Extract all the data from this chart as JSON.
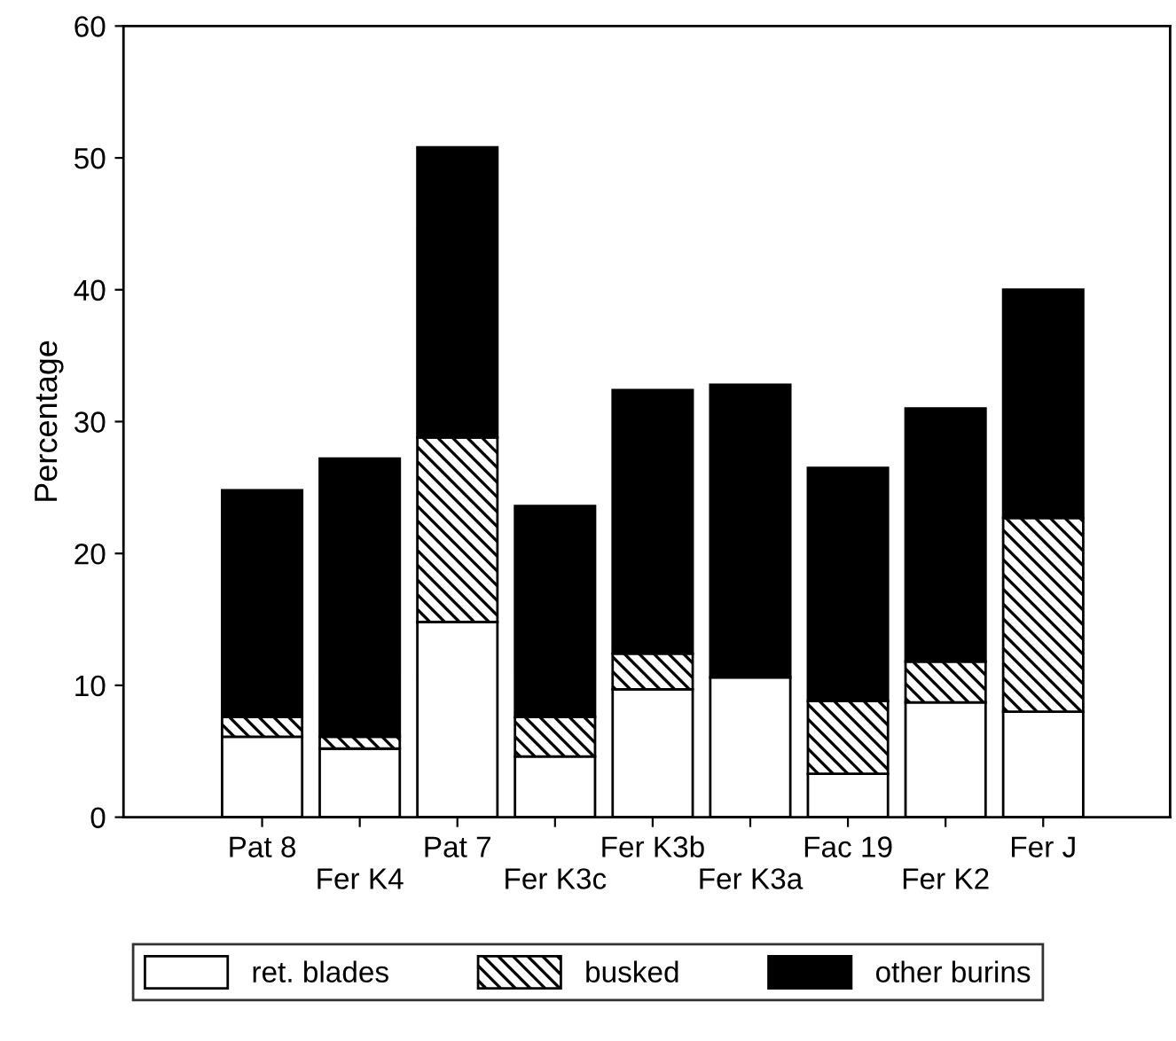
{
  "chart_data": {
    "type": "bar",
    "stacked": true,
    "ylabel": "Percentage",
    "categories": [
      "Pat 8",
      "Fer K4",
      "Pat 7",
      "Fer K3c",
      "Fer K3b",
      "Fer K3a",
      "Fac 19",
      "Fer K2",
      "Fer J"
    ],
    "series": [
      {
        "name": "ret. blades",
        "color": "#ffffff",
        "values": [
          6.1,
          5.2,
          14.8,
          4.6,
          9.7,
          10.6,
          3.3,
          8.7,
          8.0
        ]
      },
      {
        "name": "busked",
        "color": "#000000",
        "values": [
          1.5,
          0.9,
          14.0,
          3.0,
          2.7,
          0,
          5.5,
          3.1,
          14.7
        ]
      },
      {
        "name": "other burins",
        "color": "#000000",
        "values": [
          17.2,
          21.1,
          22.0,
          16.0,
          20.0,
          22.2,
          17.7,
          19.2,
          17.3
        ]
      }
    ],
    "ylim": [
      0,
      60
    ],
    "yticks": [
      0,
      10,
      20,
      30,
      40,
      50,
      60
    ],
    "grid": false,
    "legend": "bottom"
  }
}
